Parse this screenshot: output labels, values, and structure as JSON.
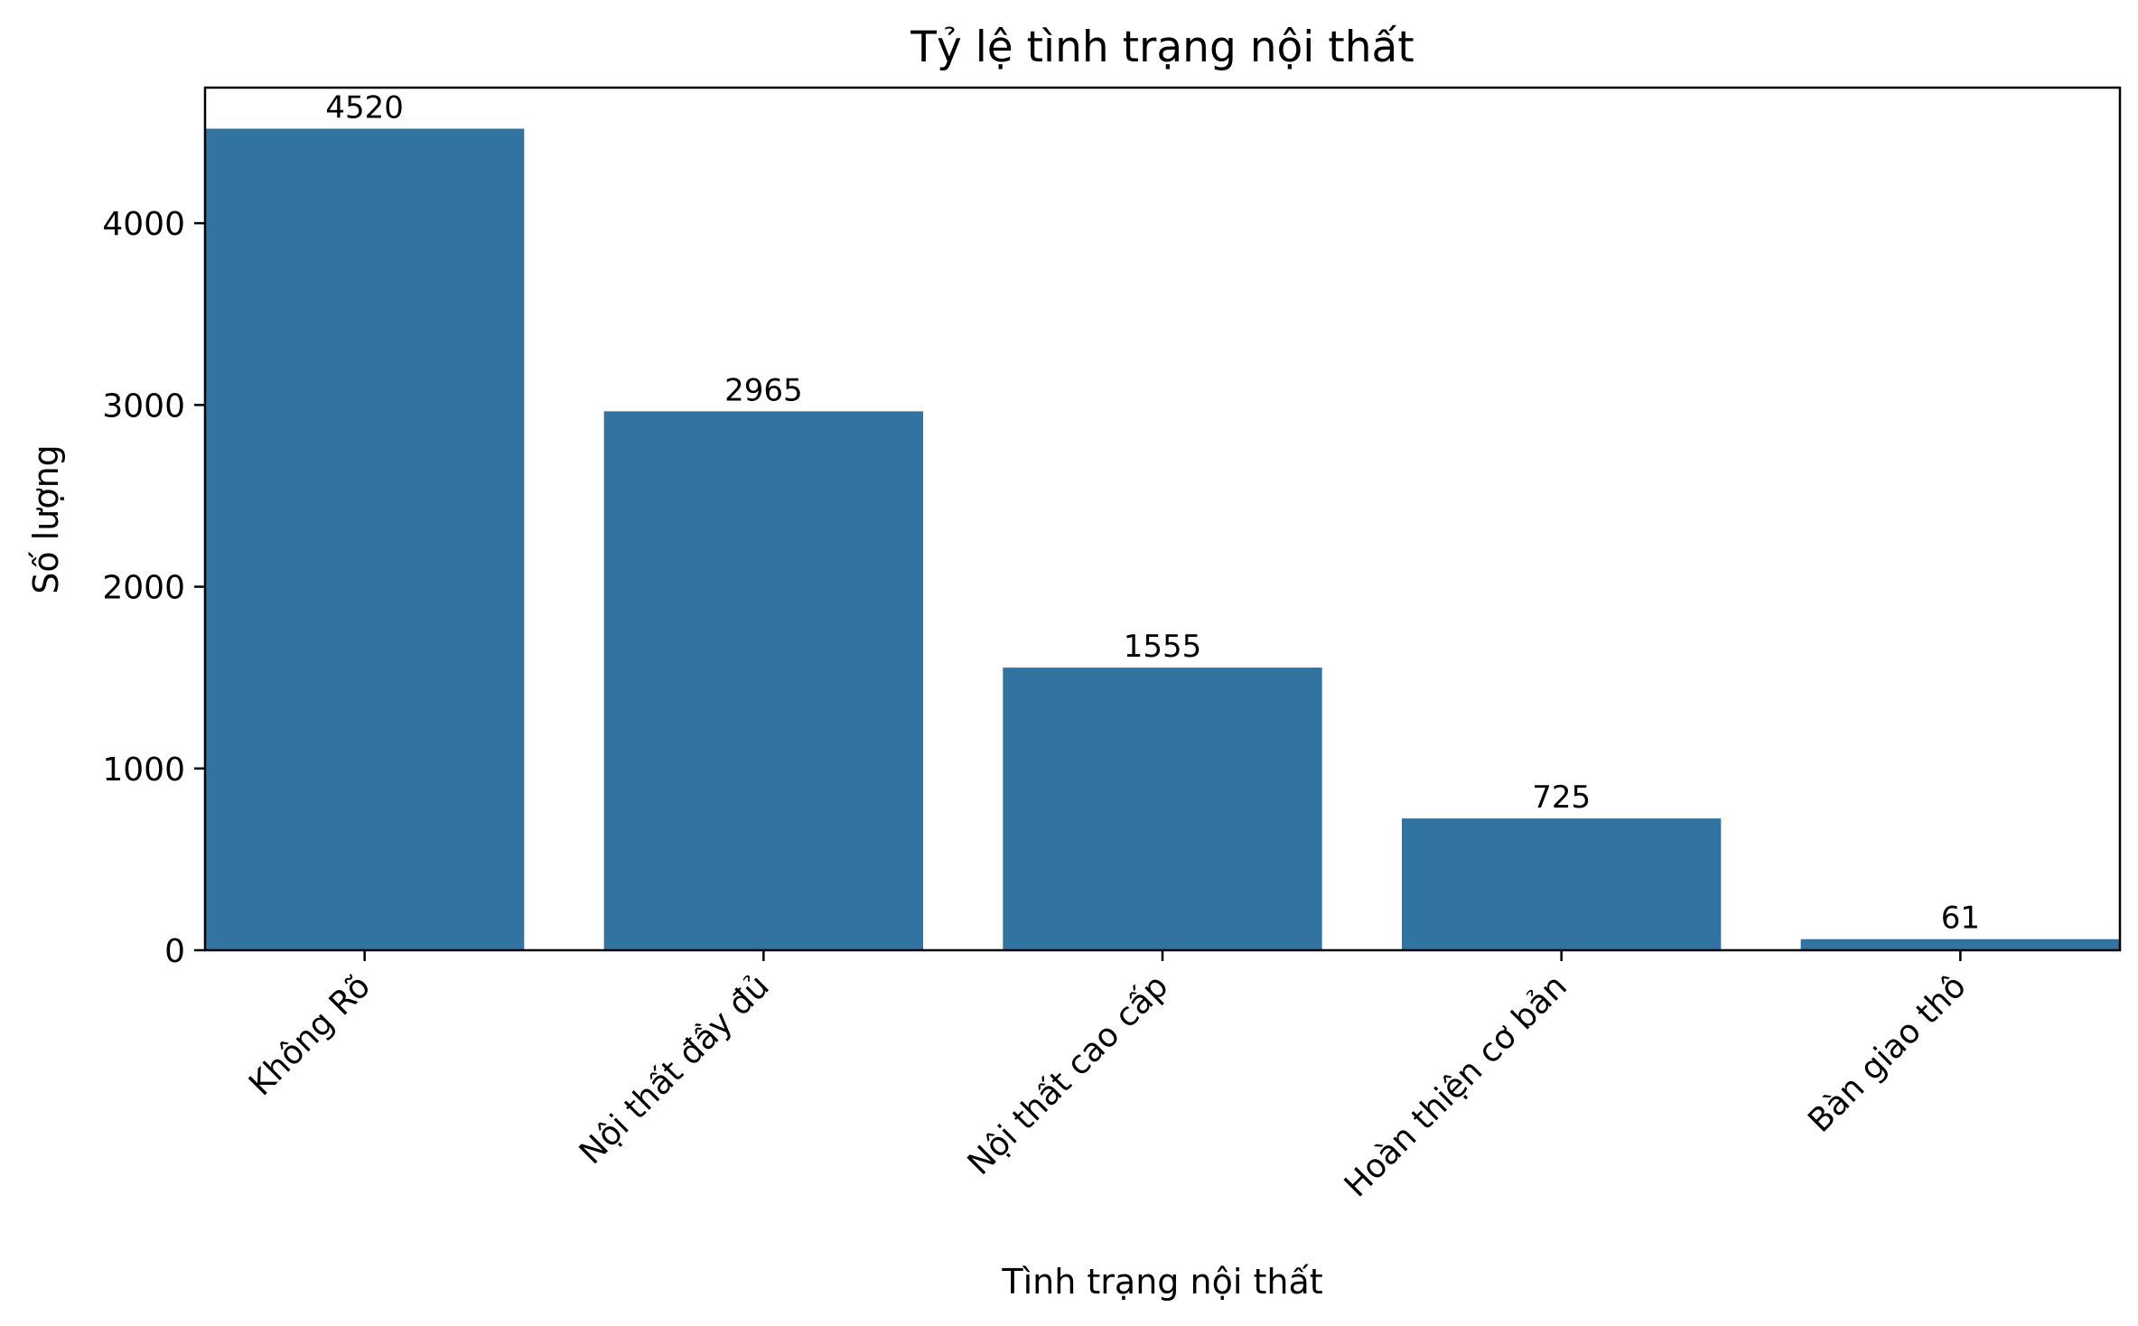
{
  "chart_data": {
    "type": "bar",
    "title": "Tỷ lệ tình trạng nội thất",
    "xlabel": "Tình trạng nội thất",
    "ylabel": "Số lượng",
    "categories": [
      "Không Rõ",
      "Nội thất đầy đủ",
      "Nội thất cao cấp",
      "Hoàn thiện cơ bản",
      "Bàn giao thô"
    ],
    "values": [
      4520,
      2965,
      1555,
      725,
      61
    ],
    "value_labels": [
      "4520",
      "2965",
      "1555",
      "725",
      "61"
    ],
    "ylim": [
      0,
      4746
    ],
    "yticks": [
      0,
      1000,
      2000,
      3000,
      4000
    ],
    "ytick_labels": [
      "0",
      "1000",
      "2000",
      "3000",
      "4000"
    ],
    "bar_color": "#3274a1",
    "grid": false,
    "legend": "none"
  }
}
